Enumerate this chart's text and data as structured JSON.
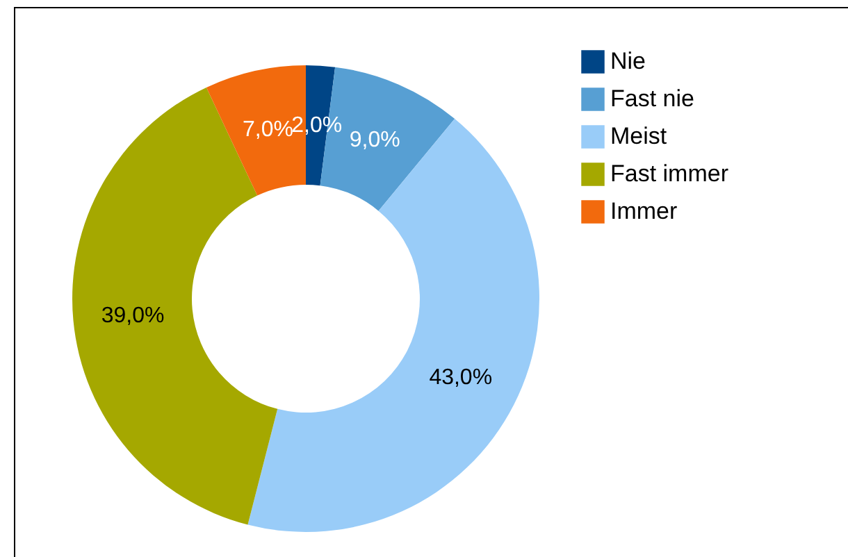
{
  "chart_data": {
    "type": "donut",
    "categories": [
      "Nie",
      "Fast nie",
      "Meist",
      "Fast immer",
      "Immer"
    ],
    "values": [
      2,
      9,
      43,
      39,
      7
    ],
    "colors": [
      "#004586",
      "#579fd3",
      "#99ccf8",
      "#a5a800",
      "#f26a0d"
    ],
    "value_labels": [
      "2,0%",
      "9,0%",
      "43,0%",
      "39,0%",
      "7,0%"
    ],
    "legend": "top right"
  }
}
